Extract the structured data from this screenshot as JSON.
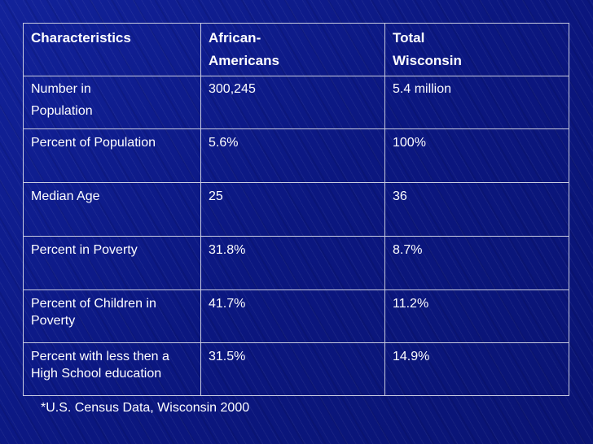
{
  "table": {
    "headers": [
      "Characteristics",
      "African-\nAmericans",
      "Total\nWisconsin"
    ],
    "rows": [
      [
        "Number in\nPopulation",
        "300,245",
        "5.4 million"
      ],
      [
        "Percent of Population",
        "5.6%",
        "100%"
      ],
      [
        "Median Age",
        "25",
        "36"
      ],
      [
        "Percent in Poverty",
        "31.8%",
        "8.7%"
      ],
      [
        "Percent of Children in Poverty",
        "41.7%",
        "11.2%"
      ],
      [
        "Percent with less then a High School education",
        "31.5%",
        "14.9%"
      ]
    ]
  },
  "footnote": "*U.S. Census Data, Wisconsin 2000"
}
